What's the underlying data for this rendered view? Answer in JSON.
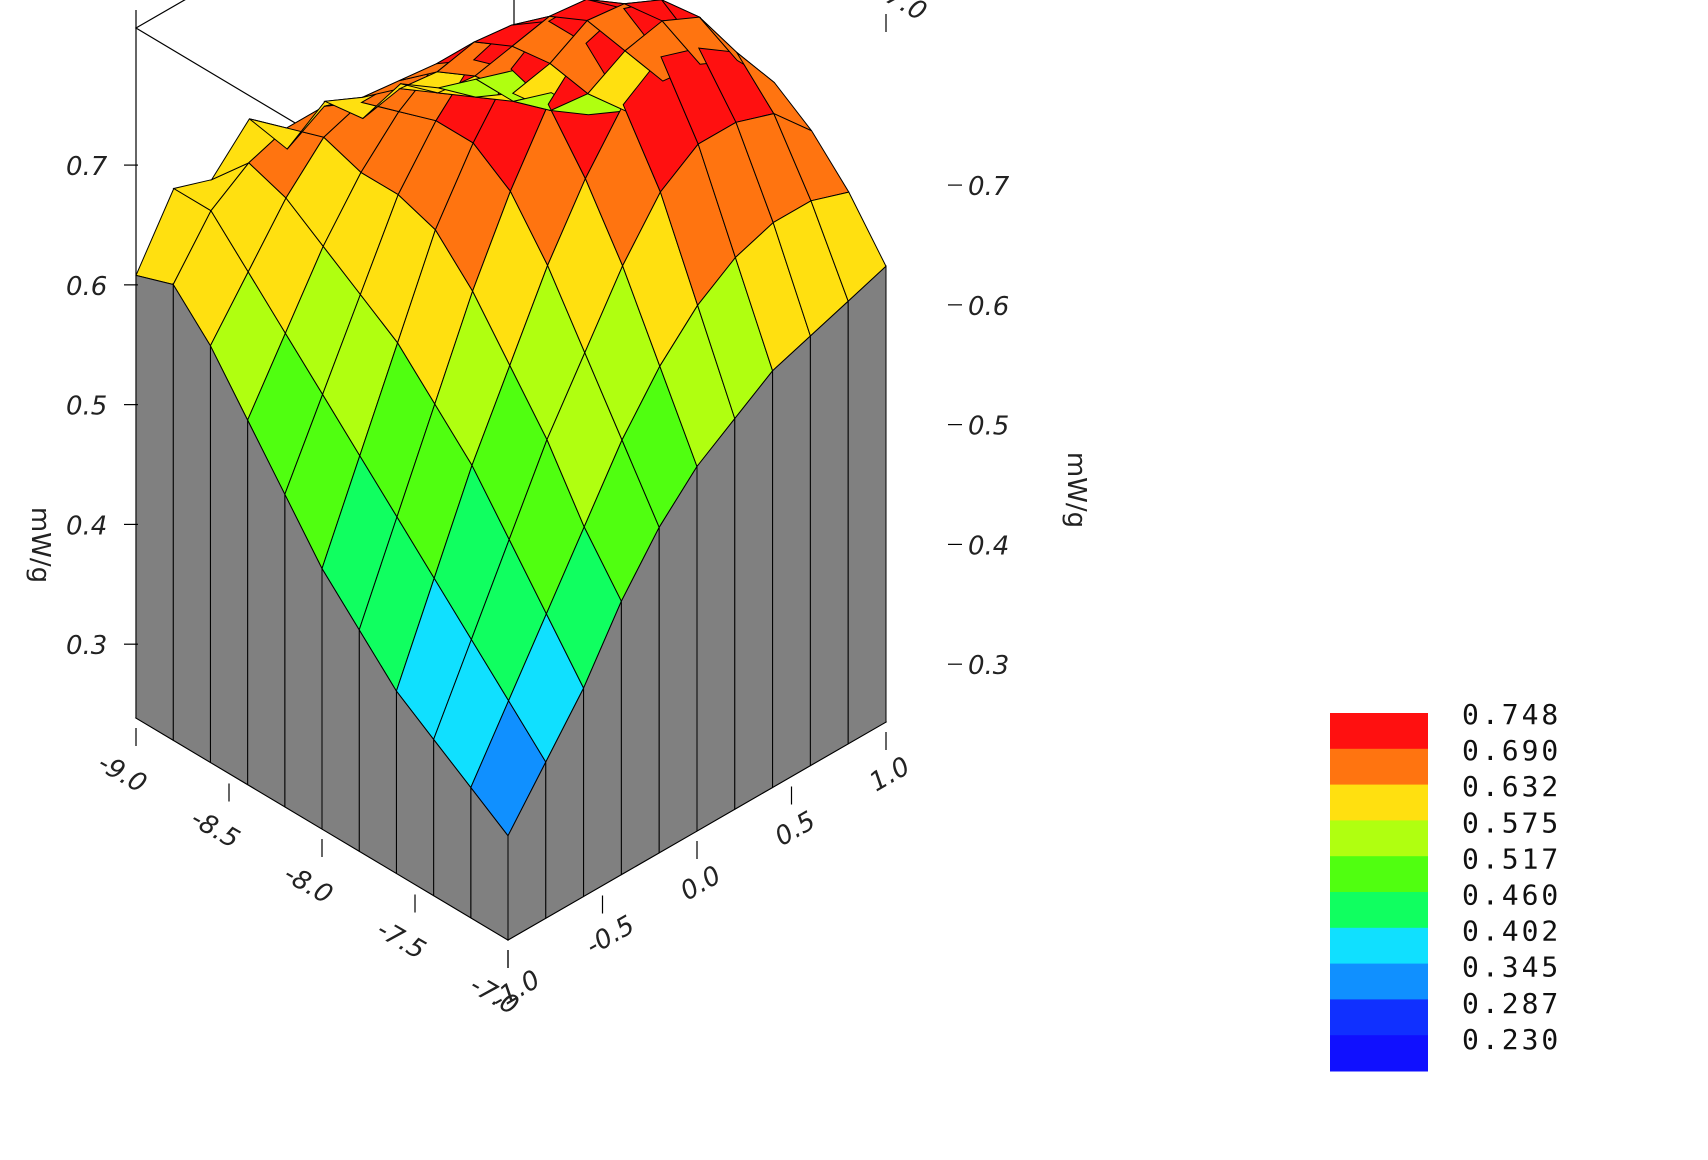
{
  "chart_data": {
    "type": "surface3d",
    "ylabel": "mW/g",
    "x_axis": {
      "range": [
        -1.0,
        1.0
      ],
      "ticks": [
        "-1.0",
        "-0.5",
        "0.0",
        "0.5",
        "1.0"
      ]
    },
    "y_axis": {
      "range": [
        -7.0,
        -9.0
      ],
      "ticks": [
        "-7.0",
        "-7.5",
        "-8.0",
        "-8.5",
        "-9.0"
      ]
    },
    "z_axis": {
      "range": [
        0.22,
        0.75
      ],
      "ticks": [
        "0.3",
        "0.4",
        "0.5",
        "0.6",
        "0.7"
      ]
    },
    "x": [
      -1.0,
      -0.8,
      -0.6,
      -0.4,
      -0.2,
      0.0,
      0.2,
      0.4,
      0.6,
      0.8,
      1.0
    ],
    "y": [
      -7.0,
      -7.2,
      -7.4,
      -7.6,
      -7.8,
      -8.0,
      -8.2,
      -8.4,
      -8.6,
      -8.8,
      -9.0
    ],
    "z_rows_note_units": "mW/g",
    "z": [
      [
        0.3,
        0.34,
        0.38,
        0.43,
        0.47,
        0.5,
        0.52,
        0.54,
        0.55,
        0.56,
        0.57
      ],
      [
        0.32,
        0.37,
        0.42,
        0.47,
        0.52,
        0.56,
        0.59,
        0.61,
        0.62,
        0.62,
        0.61
      ],
      [
        0.34,
        0.4,
        0.46,
        0.52,
        0.57,
        0.62,
        0.66,
        0.68,
        0.68,
        0.67,
        0.64
      ],
      [
        0.36,
        0.43,
        0.5,
        0.56,
        0.62,
        0.67,
        0.71,
        0.73,
        0.72,
        0.7,
        0.66
      ],
      [
        0.39,
        0.46,
        0.53,
        0.6,
        0.66,
        0.71,
        0.74,
        0.75,
        0.74,
        0.71,
        0.66
      ],
      [
        0.42,
        0.49,
        0.56,
        0.63,
        0.68,
        0.72,
        0.74,
        0.74,
        0.72,
        0.69,
        0.64
      ],
      [
        0.46,
        0.52,
        0.58,
        0.64,
        0.68,
        0.71,
        0.72,
        0.71,
        0.69,
        0.65,
        0.61
      ],
      [
        0.5,
        0.55,
        0.6,
        0.64,
        0.67,
        0.69,
        0.69,
        0.67,
        0.64,
        0.6,
        0.57
      ],
      [
        0.54,
        0.58,
        0.62,
        0.65,
        0.66,
        0.66,
        0.65,
        0.63,
        0.6,
        0.57,
        0.55
      ],
      [
        0.57,
        0.61,
        0.63,
        0.64,
        0.64,
        0.63,
        0.62,
        0.6,
        0.58,
        0.56,
        0.55
      ],
      [
        0.56,
        0.61,
        0.6,
        0.63,
        0.59,
        0.61,
        0.58,
        0.59,
        0.57,
        0.56,
        0.55
      ]
    ],
    "colorbar": {
      "levels": [
        "0.748",
        "0.690",
        "0.632",
        "0.575",
        "0.517",
        "0.460",
        "0.402",
        "0.345",
        "0.287",
        "0.230"
      ],
      "colors": [
        "#ff1010",
        "#ff7410",
        "#ffe010",
        "#b0ff10",
        "#50ff10",
        "#10ff60",
        "#10e0ff",
        "#1090ff",
        "#1030ff",
        "#1010ff"
      ]
    },
    "side_color": "#808080",
    "grid": false
  }
}
